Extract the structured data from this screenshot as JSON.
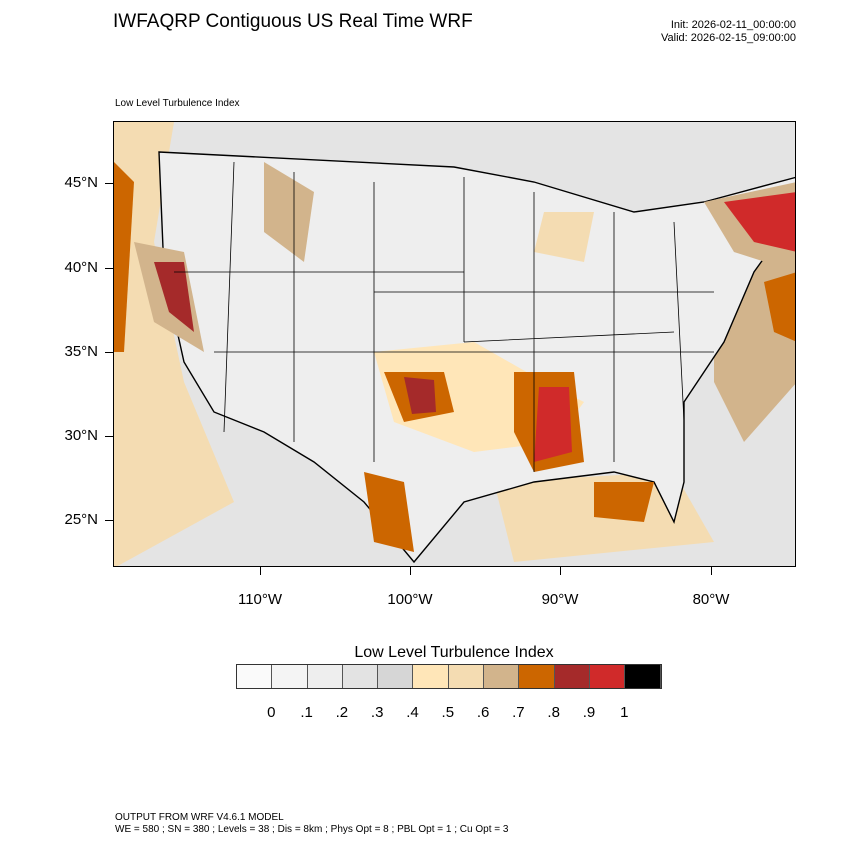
{
  "header": {
    "title": "IWFAQRP Contiguous US Real Time WRF",
    "init": "Init: 2026-02-11_00:00:00",
    "valid": "Valid: 2026-02-15_09:00:00",
    "subtitle": "Low Level Turbulence Index"
  },
  "map": {
    "lat_labels": [
      "45°N",
      "40°N",
      "35°N",
      "30°N",
      "25°N"
    ],
    "lon_labels": [
      "110°W",
      "100°W",
      "90°W",
      "80°W"
    ],
    "background_color": "#e4e4e4",
    "border_color": "#000000"
  },
  "colorbar": {
    "title": "Low Level Turbulence Index",
    "colors": [
      "#fafafa",
      "#f4f4f4",
      "#eeeeee",
      "#e3e3e3",
      "#d6d6d6",
      "#ffe6b8",
      "#f4dcb2",
      "#d2b48c",
      "#cc6600",
      "#a52a2a",
      "#d02a2a",
      "#000000"
    ],
    "labels": [
      "0",
      ".1",
      ".2",
      ".3",
      ".4",
      ".5",
      ".6",
      ".7",
      ".8",
      ".9",
      "1"
    ]
  },
  "footer": {
    "line1": "OUTPUT FROM WRF V4.6.1 MODEL",
    "line2": "WE = 580 ; SN = 380 ; Levels = 38 ; Dis = 8km ; Phys Opt = 8 ; PBL Opt = 1 ; Cu Opt = 3"
  }
}
